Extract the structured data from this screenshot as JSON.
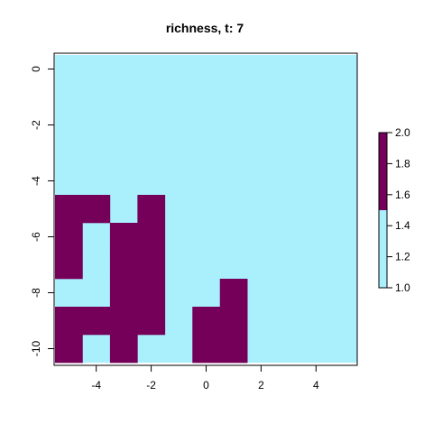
{
  "chart_data": {
    "type": "heatmap",
    "title": "richness, t: 7",
    "xlabel": "",
    "ylabel": "",
    "xlim": [
      -5.5,
      5.5
    ],
    "ylim": [
      -10.5,
      0.5
    ],
    "x_ticks": [
      -4,
      -2,
      0,
      2,
      4
    ],
    "y_ticks": [
      0,
      -2,
      -4,
      -6,
      -8,
      -10
    ],
    "cells_value_2": [
      {
        "x": -5,
        "y": -5
      },
      {
        "x": -4,
        "y": -5
      },
      {
        "x": -2,
        "y": -5
      },
      {
        "x": -5,
        "y": -6
      },
      {
        "x": -3,
        "y": -6
      },
      {
        "x": -2,
        "y": -6
      },
      {
        "x": -5,
        "y": -7
      },
      {
        "x": -3,
        "y": -7
      },
      {
        "x": -2,
        "y": -7
      },
      {
        "x": -3,
        "y": -8
      },
      {
        "x": -2,
        "y": -8
      },
      {
        "x": 1,
        "y": -8
      },
      {
        "x": -5,
        "y": -9
      },
      {
        "x": -4,
        "y": -9
      },
      {
        "x": -3,
        "y": -9
      },
      {
        "x": -2,
        "y": -9
      },
      {
        "x": 0,
        "y": -9
      },
      {
        "x": 1,
        "y": -9
      },
      {
        "x": -5,
        "y": -10
      },
      {
        "x": -3,
        "y": -10
      },
      {
        "x": 0,
        "y": -10
      },
      {
        "x": 1,
        "y": -10
      }
    ],
    "background_value": 1,
    "value_range": [
      1.0,
      2.0
    ],
    "colors": {
      "low": "#aaf0fc",
      "high": "#75005a"
    },
    "legend": {
      "position": "right",
      "ticks": [
        "1.0",
        "1.2",
        "1.4",
        "1.6",
        "1.8",
        "2.0"
      ],
      "breakpoint": 1.5
    },
    "grid": false
  }
}
